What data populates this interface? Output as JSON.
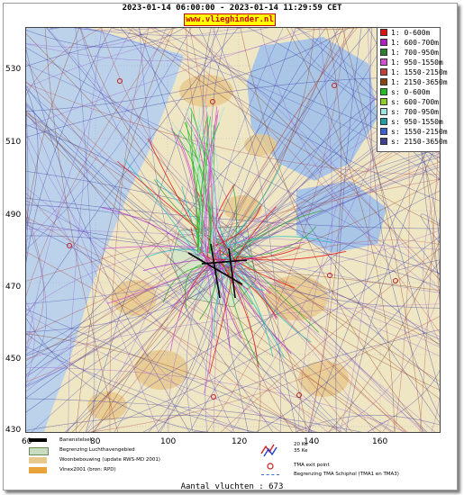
{
  "title": "2023-01-14 06:00:00 - 2023-01-14 11:29:59 CET",
  "brand": "www.vlieghinder.nl",
  "axes": {
    "y_ticks": [
      "530",
      "510",
      "490",
      "470",
      "450",
      "430"
    ],
    "x_ticks": [
      "60",
      "80",
      "100",
      "120",
      "140",
      "160"
    ]
  },
  "legend": [
    {
      "label": "1: 0-600m",
      "color": "#e01010"
    },
    {
      "label": "1: 600-700m",
      "color": "#b020c0"
    },
    {
      "label": "1: 700-950m",
      "color": "#2f7f2f"
    },
    {
      "label": "1: 950-1550m",
      "color": "#d050d0"
    },
    {
      "label": "1: 1550-2150m",
      "color": "#c04040"
    },
    {
      "label": "1: 2150-3650m",
      "color": "#8b4513"
    },
    {
      "label": "s: 0-600m",
      "color": "#20c020"
    },
    {
      "label": "s: 600-700m",
      "color": "#90d020"
    },
    {
      "label": "s: 700-950m",
      "color": "#a0e0e0"
    },
    {
      "label": "s: 950-1550m",
      "color": "#20a0a0"
    },
    {
      "label": "s: 1550-2150m",
      "color": "#4060d0"
    },
    {
      "label": "s: 2150-3650m",
      "color": "#404090"
    }
  ],
  "bottom_legend": {
    "runway": "Banenstelsel",
    "airport_boundary": "Begrenzing Luchthavengebied",
    "housing": "Woonbebouwing (update RWS-MD 2001)",
    "vinex": "Vinex2001 (bron: RPD)",
    "ke20": "20 Ke",
    "ke35": "35 Ke",
    "tma_exit": "TMA exit point",
    "tma_boundary": "Begrenzing TMA Schiphol  (TMA1 en TMA3)"
  },
  "footer": "Aantal vluchten : 673",
  "colors": {
    "water": "#a9c6e6",
    "land": "#f3e3b3",
    "polder": "#e8efd8",
    "track_blue": "#3a3aa0",
    "track_brown": "#8b3a1a",
    "track_purple": "#b030d0",
    "track_green": "#30a030"
  }
}
